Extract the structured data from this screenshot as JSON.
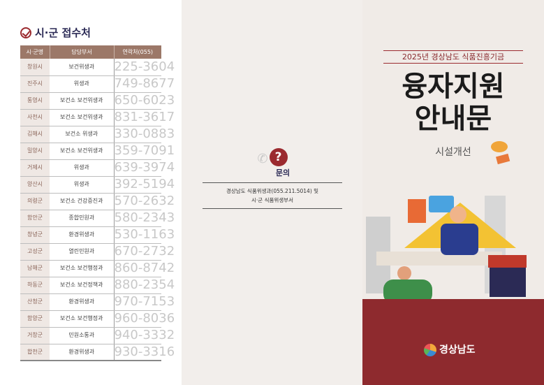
{
  "left": {
    "title": "시·군 접수처",
    "headers": [
      "시·군명",
      "담당부서",
      "연락처(055)"
    ],
    "rows": [
      [
        "창원시",
        "보건위생과",
        "225-3604"
      ],
      [
        "진주시",
        "위생과",
        "749-8677"
      ],
      [
        "통영시",
        "보건소 보건위생과",
        "650-6023"
      ],
      [
        "사천시",
        "보건소 보건위생과",
        "831-3617"
      ],
      [
        "김해시",
        "보건소 위생과",
        "330-0883"
      ],
      [
        "밀양시",
        "보건소 보건위생과",
        "359-7091"
      ],
      [
        "거제시",
        "위생과",
        "639-3974"
      ],
      [
        "양산시",
        "위생과",
        "392-5194"
      ],
      [
        "의령군",
        "보건소 건강증진과",
        "570-2632"
      ],
      [
        "함안군",
        "종합민원과",
        "580-2343"
      ],
      [
        "창녕군",
        "환경위생과",
        "530-1163"
      ],
      [
        "고성군",
        "열린민원과",
        "670-2732"
      ],
      [
        "남해군",
        "보건소 보건행정과",
        "860-8742"
      ],
      [
        "하동군",
        "보건소 보건정책과",
        "880-2354"
      ],
      [
        "산청군",
        "환경위생과",
        "970-7153"
      ],
      [
        "함양군",
        "보건소 보건행정과",
        "960-8036"
      ],
      [
        "거창군",
        "민원소통과",
        "940-3332"
      ],
      [
        "합천군",
        "환경위생과",
        "930-3316"
      ]
    ]
  },
  "middle": {
    "icon": "question-bubble-icon",
    "label": "문의",
    "line1": "경상남도 식품위생과(055.211.5014) 및",
    "line2": "시·군 식품위생부서"
  },
  "cover": {
    "subtitle": "2025년 경상남도 식품진흥기금",
    "title1": "융자지원",
    "title2": "안내문",
    "category": "시설개선",
    "logo": "경상남도"
  },
  "colors": {
    "accent": "#9b2a2f",
    "header": "#9c7868",
    "navy": "#2b2a55"
  }
}
